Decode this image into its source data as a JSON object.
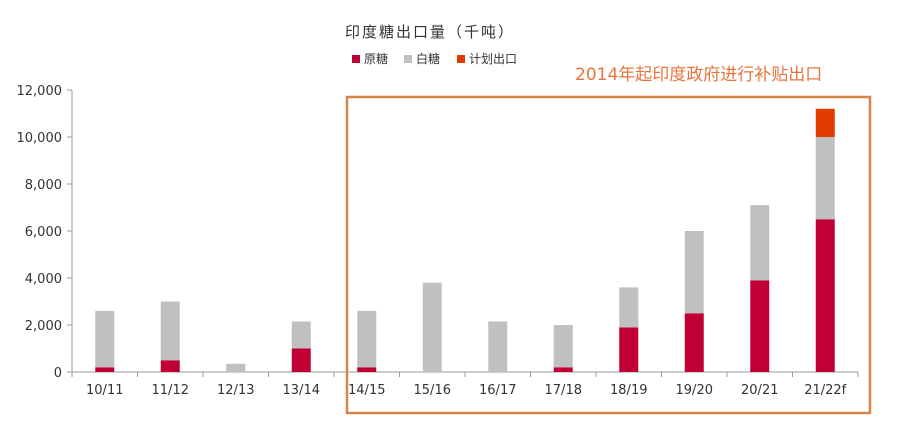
{
  "chart_data": {
    "type": "bar",
    "stacked": true,
    "title": "印度糖出口量（千吨）",
    "xlabel": "",
    "ylabel": "",
    "categories": [
      "10/11",
      "11/12",
      "12/13",
      "13/14",
      "14/15",
      "15/16",
      "16/17",
      "17/18",
      "18/19",
      "19/20",
      "20/21",
      "21/22f"
    ],
    "series": [
      {
        "name": "原糖",
        "color": "#c00034",
        "values": [
          200,
          500,
          0,
          1000,
          200,
          0,
          0,
          200,
          1900,
          2500,
          3900,
          6500
        ]
      },
      {
        "name": "白糖",
        "color": "#c0c0c0",
        "values": [
          2400,
          2500,
          350,
          1150,
          2400,
          3800,
          2150,
          1800,
          1700,
          3500,
          3200,
          3500
        ]
      },
      {
        "name": "计划出口",
        "color": "#e03b00",
        "values": [
          0,
          0,
          0,
          0,
          0,
          0,
          0,
          0,
          0,
          0,
          0,
          1200
        ]
      }
    ],
    "ylim": [
      0,
      12000
    ],
    "yticks": [
      0,
      2000,
      4000,
      6000,
      8000,
      10000,
      12000
    ],
    "ytick_labels": [
      "0",
      "2,000",
      "4,000",
      "6,000",
      "8,000",
      "10,000",
      "12,000"
    ],
    "grid": false,
    "legend_position": "top-center",
    "annotation": {
      "text": "2014年起印度政府进行补贴出口",
      "color": "#e8743b",
      "box_color": "#d9824a"
    }
  }
}
